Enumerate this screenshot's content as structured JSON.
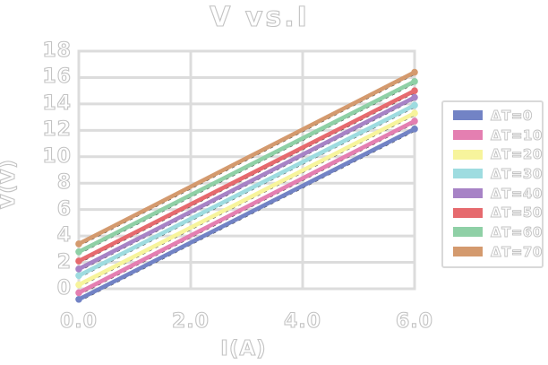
{
  "chart_data": {
    "type": "line",
    "title": "V vs.I",
    "xlabel": "I(A)",
    "ylabel": "V(V)",
    "xlim": [
      0,
      6
    ],
    "ylim": [
      0,
      18
    ],
    "x_ticks": [
      0.0,
      2.0,
      4.0,
      6.0
    ],
    "x_tick_labels": [
      "0.0",
      "2.0",
      "4.0",
      "6.0"
    ],
    "y_ticks": [
      0,
      2,
      4,
      6,
      8,
      10,
      12,
      14,
      16,
      18
    ],
    "grid": true,
    "grid_color": "#dcdcdc",
    "text_outline_color": "#c3c3c3",
    "dashed_trace_color": "#3a3a3a",
    "legend_position": "right",
    "series": [
      {
        "name": "ΔT=0",
        "color": "#7283c5",
        "x": [
          0,
          6
        ],
        "y": [
          -0.8,
          12.1
        ]
      },
      {
        "name": "ΔT=10",
        "color": "#e47fb1",
        "x": [
          0,
          6
        ],
        "y": [
          -0.3,
          12.7
        ]
      },
      {
        "name": "ΔT=20",
        "color": "#f7f49c",
        "x": [
          0,
          6
        ],
        "y": [
          0.3,
          13.3
        ]
      },
      {
        "name": "ΔT=30",
        "color": "#9edce0",
        "x": [
          0,
          6
        ],
        "y": [
          1.0,
          13.9
        ]
      },
      {
        "name": "ΔT=40",
        "color": "#a783c6",
        "x": [
          0,
          6
        ],
        "y": [
          1.5,
          14.5
        ]
      },
      {
        "name": "ΔT=50",
        "color": "#e66a6e",
        "x": [
          0,
          6
        ],
        "y": [
          2.1,
          15.0
        ]
      },
      {
        "name": "ΔT=60",
        "color": "#8fd0a6",
        "x": [
          0,
          6
        ],
        "y": [
          2.8,
          15.7
        ]
      },
      {
        "name": "ΔT=70",
        "color": "#d49a6e",
        "x": [
          0,
          6
        ],
        "y": [
          3.4,
          16.4
        ]
      }
    ]
  }
}
